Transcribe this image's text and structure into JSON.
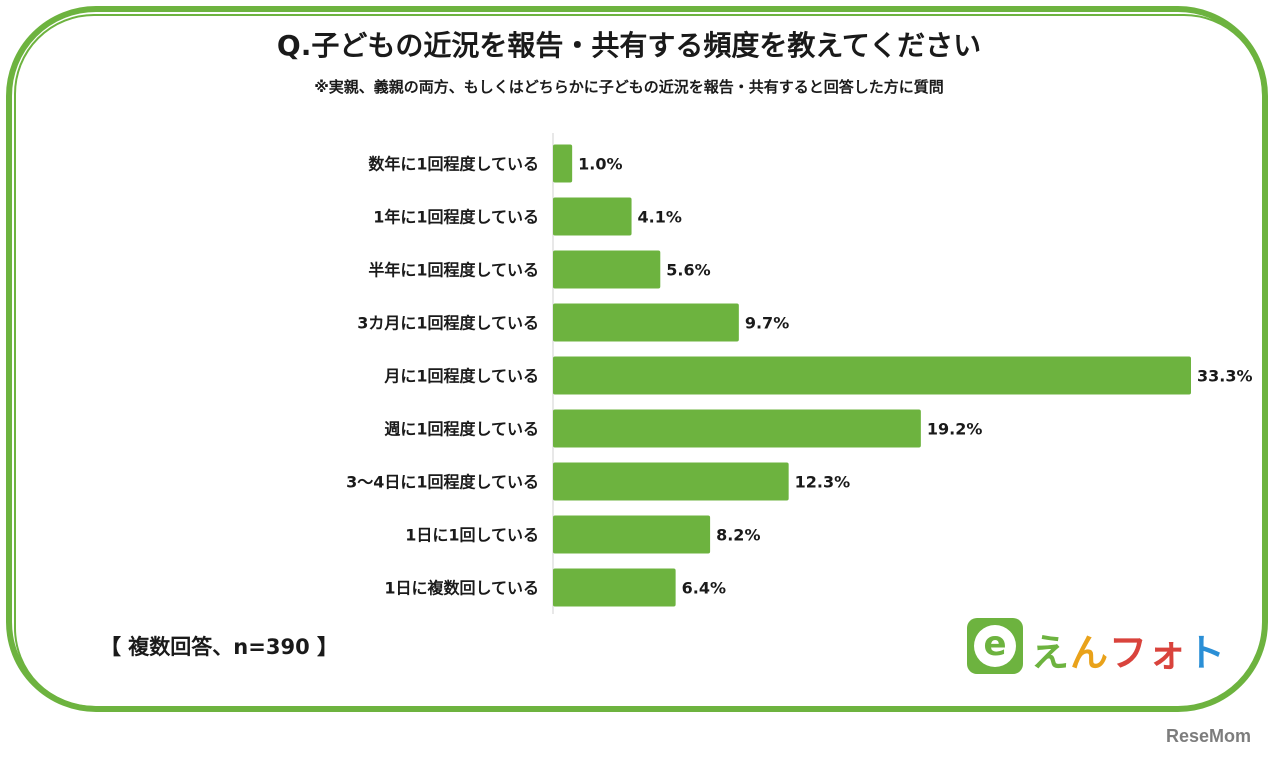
{
  "chart_data": {
    "type": "bar",
    "orientation": "horizontal",
    "title": "Q.子どもの近況を報告・共有する頻度を教えてください",
    "subtitle": "※実親、義親の両方、もしくはどちらかに子どもの近況を報告・共有すると回答した方に質問",
    "categories": [
      "数年に1回程度している",
      "1年に1回程度している",
      "半年に1回程度している",
      "3カ月に1回程度している",
      "月に1回程度している",
      "週に1回程度している",
      "3〜4日に1回程度している",
      "1日に1回している",
      "1日に複数回している"
    ],
    "values": [
      1.0,
      4.1,
      5.6,
      9.7,
      33.3,
      19.2,
      12.3,
      8.2,
      6.4
    ],
    "value_labels": [
      "1.0%",
      "4.1%",
      "5.6%",
      "9.7%",
      "33.3%",
      "19.2%",
      "12.3%",
      "8.2%",
      "6.4%"
    ],
    "xlim": [
      0,
      33.3
    ],
    "bar_color": "#6db33f",
    "grid": false,
    "legend": "none"
  },
  "note": "【 複数回答、n=390 】",
  "logo": {
    "badge_letter": "e",
    "text_parts": [
      "え",
      "ん",
      "フォ",
      "ト"
    ]
  },
  "watermark": "ReseMom",
  "colors": {
    "frame": "#6db33f",
    "logo_green": "#6db33f",
    "logo_orange": "#e9a21a",
    "logo_red": "#d9433c",
    "logo_blue": "#2a8fd6"
  }
}
